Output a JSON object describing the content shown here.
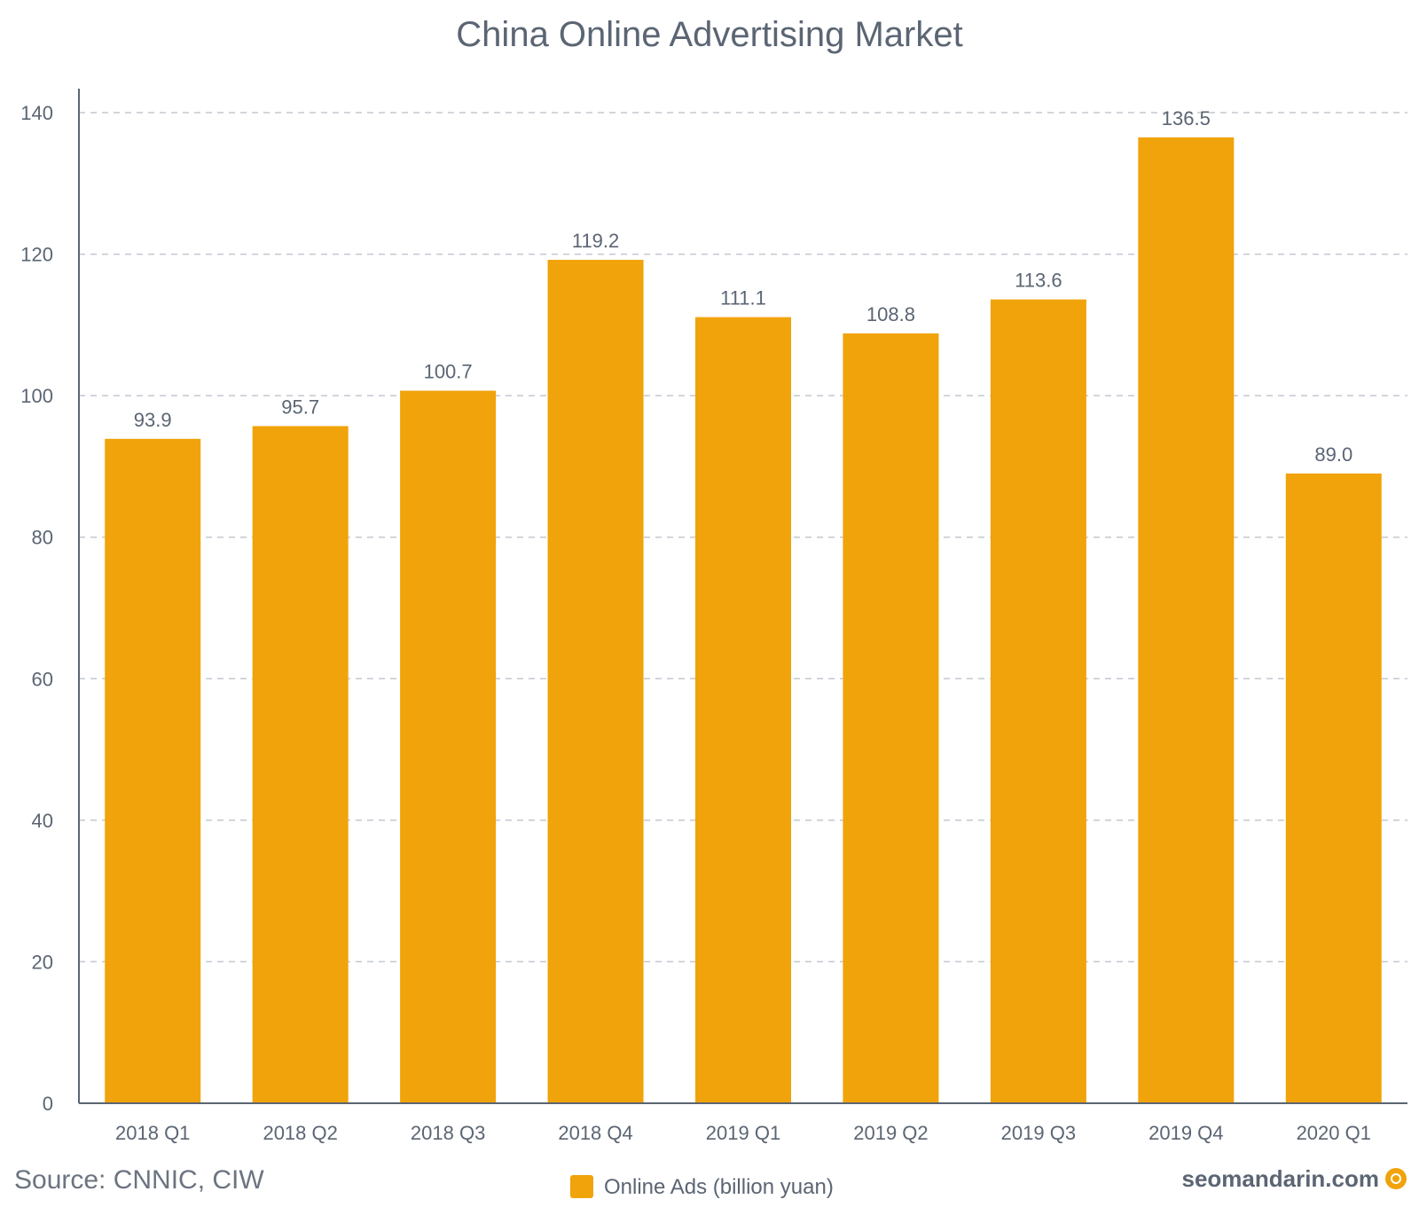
{
  "chart_data": {
    "type": "bar",
    "title": "China Online Advertising Market",
    "categories": [
      "2018 Q1",
      "2018 Q2",
      "2018 Q3",
      "2018 Q4",
      "2019 Q1",
      "2019 Q2",
      "2019 Q3",
      "2019 Q4",
      "2020 Q1"
    ],
    "series": [
      {
        "name": "Online Ads (billion yuan)",
        "values": [
          93.9,
          95.7,
          100.7,
          119.2,
          111.1,
          108.8,
          113.6,
          136.5,
          89.0
        ]
      }
    ],
    "data_labels": [
      "93.9",
      "95.7",
      "100.7",
      "119.2",
      "111.1",
      "108.8",
      "113.6",
      "136.5",
      "89.0"
    ],
    "ylim": [
      0,
      140
    ],
    "yticks": [
      0,
      20,
      40,
      60,
      80,
      100,
      120,
      140
    ],
    "xlabel": "",
    "ylabel": "",
    "grid": true,
    "legend_position": "bottom",
    "bar_color": "#f0a30a"
  },
  "footer": {
    "source": "Source:  CNNIC, CIW",
    "brand": "seomandarin.com"
  }
}
